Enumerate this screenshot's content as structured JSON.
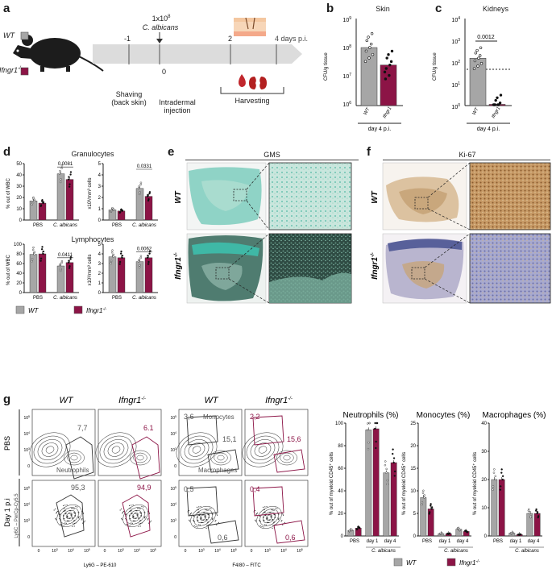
{
  "colors": {
    "wt": "#a6a6a6",
    "ko": "#8c1446",
    "gms": "#3fb8a6",
    "ki67": "#b88a55",
    "ki67_blue": "#7f84b8"
  },
  "panel_a": {
    "label": "a",
    "legend_wt": "WT",
    "legend_ko": "Ifngr1",
    "ko_sup": "-/-",
    "dose": "1x10",
    "dose_exp": "8",
    "species": "C. albicans",
    "tick_m1": "-1",
    "tick_0": "0",
    "tick_2": "2",
    "tick_4": "4 days p.i.",
    "step1a": "Shaving",
    "step1b": "(back skin)",
    "step2a": "Intradermal",
    "step2b": "injection",
    "step3": "Harvesting"
  },
  "panel_b": {
    "label": "b",
    "title": "Skin",
    "ylabel": "CFU/g tissue",
    "yticks": [
      "10",
      "10",
      "10",
      "10"
    ],
    "yexps": [
      "9",
      "8",
      "7",
      "6"
    ],
    "xlabels": [
      "WT",
      "Ifngr1"
    ],
    "xsup": "-/-",
    "footer": "day 4 p.i."
  },
  "panel_c": {
    "label": "c",
    "title": "Kidneys",
    "ylabel": "CFU/g tissue",
    "yticks": [
      "10",
      "10",
      "10",
      "10",
      "10"
    ],
    "yexps": [
      "4",
      "3",
      "2",
      "1",
      "0"
    ],
    "pvalue": "0.0012",
    "xlabels": [
      "WT",
      "Ifngr1"
    ],
    "xsup": "-/-",
    "footer": "day 4 p.i."
  },
  "panel_d": {
    "label": "d",
    "gran_title": "Granulocytes",
    "lymph_title": "Lymphocytes",
    "ylabel_pct": "% out of WBC",
    "ylabel_abs": "x10³/mm³ cells",
    "p_gran_pct": "0.0081",
    "p_gran_abs": "0.0331",
    "p_lymph_pct": "0.0411",
    "p_lymph_abs": "0.0062",
    "x_pbs": "PBS",
    "x_calb": "C. albicans",
    "gran_pct_ticks": [
      "50",
      "40",
      "30",
      "20",
      "10",
      "0"
    ],
    "gran_abs_ticks": [
      "5",
      "4",
      "3",
      "2",
      "1",
      "0"
    ],
    "lymph_pct_ticks": [
      "100",
      "80",
      "60",
      "40",
      "20",
      "0"
    ],
    "lymph_abs_ticks": [
      "5",
      "4",
      "3",
      "2",
      "1",
      "0"
    ],
    "legend_wt": "WT",
    "legend_ko": "Ifngr1",
    "legend_sup": "-/-"
  },
  "panel_e": {
    "label": "e",
    "title": "GMS",
    "row1": "WT",
    "row2": "Ifngr1",
    "sup": "-/-"
  },
  "panel_f": {
    "label": "f",
    "title": "Ki-67",
    "row1": "WT",
    "row2": "Ifngr1",
    "sup": "-/-"
  },
  "panel_g": {
    "label": "g",
    "col_wt": "WT",
    "col_ko": "Ifngr1",
    "sup": "-/-",
    "row_pbs": "PBS",
    "row_day1": "Day 1 p.i",
    "yaxis": "Ly6C – PerCp-Cy5.5",
    "xaxis1": "Ly6G – PE-610",
    "xaxis2": "F4/80 – FITC",
    "v_pbs_wt_neu": "7,7",
    "v_pbs_ko_neu": "6.1",
    "lab_neutrophils": "Neutrophils",
    "v_pbs_wt_mono": "3,6",
    "lab_monocytes": "Monocytes",
    "v_pbs_wt_mac": "15,1",
    "lab_macrophages": "Macrophages",
    "v_pbs_ko_mono": "2,2",
    "v_pbs_ko_mac": "15,6",
    "v_d1_wt_neu": "95,3",
    "v_d1_ko_neu": "94,9",
    "v_d1_wt_mono": "0,5",
    "v_d1_wt_mac": "0,6",
    "v_d1_ko_mono": "0,4",
    "v_d1_ko_mac": "0,6",
    "flow_ticks": [
      "10",
      "10",
      "10",
      "0"
    ],
    "flow_exps": [
      "5",
      "4",
      "3",
      ""
    ],
    "neu_title": "Neutrophils (%)",
    "mono_title": "Monocytes (%)",
    "mac_title": "Macrophages (%)",
    "bar_ylabel": "% out of myeloid CD45⁺ cells",
    "x_pbs": "PBS",
    "x_d1": "day 1",
    "x_d4": "day 4",
    "x_calb": "C. albicans",
    "neu_ticks": [
      "100",
      "80",
      "60",
      "40",
      "20",
      "0"
    ],
    "mono_ticks": [
      "25",
      "20",
      "15",
      "10",
      "5",
      "0"
    ],
    "mac_ticks": [
      "40",
      "30",
      "20",
      "10",
      "0"
    ],
    "legend_wt": "WT",
    "legend_ko": "Ifngr1",
    "legend_sup": "-/-"
  },
  "chart_data": [
    {
      "type": "bar",
      "panel": "b",
      "title": "Skin",
      "ylabel": "CFU/g tissue",
      "yscale": "log",
      "ylim": [
        1000000,
        1000000000
      ],
      "categories": [
        "WT",
        "Ifngr1-/-"
      ],
      "values": [
        100000000,
        25000000
      ]
    },
    {
      "type": "bar",
      "panel": "c",
      "title": "Kidneys",
      "ylabel": "CFU/g tissue",
      "yscale": "log",
      "ylim": [
        1,
        10000
      ],
      "categories": [
        "WT",
        "Ifngr1-/-"
      ],
      "values": [
        150,
        1
      ]
    },
    {
      "type": "bar",
      "panel": "d",
      "title": "Granulocytes",
      "ylabel": "% out of WBC",
      "ylim": [
        0,
        50
      ],
      "categories": [
        "PBS",
        "C. albicans"
      ],
      "series": [
        {
          "name": "WT",
          "values": [
            17,
            41
          ]
        },
        {
          "name": "Ifngr1-/-",
          "values": [
            15,
            36
          ]
        }
      ]
    },
    {
      "type": "bar",
      "panel": "d",
      "ylabel": "x10³/mm³ cells",
      "ylim": [
        0,
        5
      ],
      "categories": [
        "PBS",
        "C. albicans"
      ],
      "series": [
        {
          "name": "WT",
          "values": [
            0.9,
            2.8
          ]
        },
        {
          "name": "Ifngr1-/-",
          "values": [
            0.8,
            2.1
          ]
        }
      ]
    },
    {
      "type": "bar",
      "panel": "d",
      "title": "Lymphocytes",
      "ylabel": "% out of WBC",
      "ylim": [
        0,
        100
      ],
      "categories": [
        "PBS",
        "C. albicans"
      ],
      "series": [
        {
          "name": "WT",
          "values": [
            79,
            55
          ]
        },
        {
          "name": "Ifngr1-/-",
          "values": [
            80,
            62
          ]
        }
      ]
    },
    {
      "type": "bar",
      "panel": "d",
      "ylabel": "x10³/mm³ cells",
      "ylim": [
        0,
        5
      ],
      "categories": [
        "PBS",
        "C. albicans"
      ],
      "series": [
        {
          "name": "WT",
          "values": [
            3.7,
            3.2
          ]
        },
        {
          "name": "Ifngr1-/-",
          "values": [
            3.6,
            3.6
          ]
        }
      ]
    },
    {
      "type": "bar",
      "panel": "g",
      "title": "Neutrophils (%)",
      "ylabel": "% out of myeloid CD45+ cells",
      "ylim": [
        0,
        100
      ],
      "categories": [
        "PBS",
        "day 1",
        "day 4"
      ],
      "series": [
        {
          "name": "WT",
          "values": [
            5,
            94,
            56
          ]
        },
        {
          "name": "Ifngr1-/-",
          "values": [
            7,
            95,
            65
          ]
        }
      ]
    },
    {
      "type": "bar",
      "panel": "g",
      "title": "Monocytes (%)",
      "ylabel": "% out of myeloid CD45+ cells",
      "ylim": [
        0,
        25
      ],
      "categories": [
        "PBS",
        "day 1",
        "day 4"
      ],
      "series": [
        {
          "name": "WT",
          "values": [
            8.5,
            0.5,
            1.5
          ]
        },
        {
          "name": "Ifngr1-/-",
          "values": [
            6,
            0.5,
            1
          ]
        }
      ]
    },
    {
      "type": "bar",
      "panel": "g",
      "title": "Macrophages (%)",
      "ylabel": "% out of myeloid CD45+ cells",
      "ylim": [
        0,
        40
      ],
      "categories": [
        "PBS",
        "day 1",
        "day 4"
      ],
      "series": [
        {
          "name": "WT",
          "values": [
            20,
            1,
            8
          ]
        },
        {
          "name": "Ifngr1-/-",
          "values": [
            20,
            0.5,
            8
          ]
        }
      ]
    }
  ]
}
